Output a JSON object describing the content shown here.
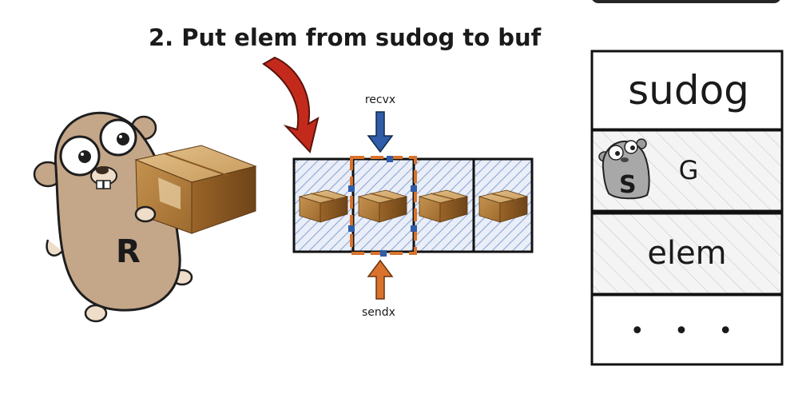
{
  "title": "2. Put elem from sudog to buf",
  "receiver_gopher": {
    "label": "R"
  },
  "buffer": {
    "slot_count": 4,
    "recvx_label": "recvx",
    "sendx_label": "sendx",
    "recvx_index": 1,
    "sendx_index": 1
  },
  "sudog": {
    "header": "sudog",
    "g_field": {
      "label": "G",
      "gopher_label": "S"
    },
    "elem_field": {
      "label": "elem"
    },
    "more_label": "• • •"
  },
  "colors": {
    "arrow_red": "#c42a1c",
    "arrow_blue": "#2f5da8",
    "arrow_orange": "#d8722c",
    "hatch_blue": "#9fb4d8",
    "gopher": "#c4a688",
    "box_brown": "#b77e3a"
  }
}
